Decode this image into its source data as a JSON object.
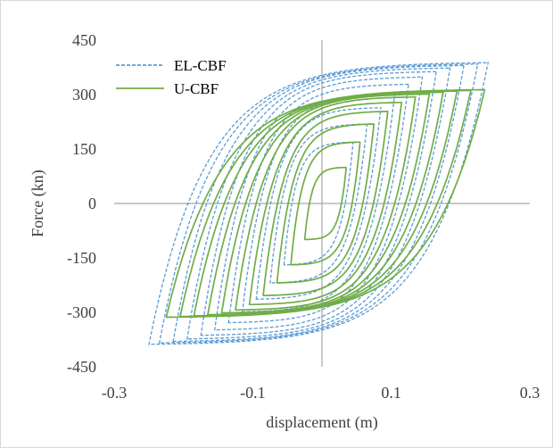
{
  "chart_data": {
    "type": "line",
    "xlabel": "displacement (m)",
    "ylabel": "Force (kn)",
    "xlim": [
      -0.3,
      0.3
    ],
    "ylim": [
      -450,
      450
    ],
    "x_ticks": [
      -0.3,
      -0.1,
      0.1,
      0.3
    ],
    "x_tick_labels": [
      "-0.3",
      "-0.1",
      "0.1",
      "0.3"
    ],
    "y_ticks": [
      450,
      300,
      150,
      0,
      -150,
      -300,
      -450
    ],
    "y_tick_labels": [
      "450",
      "300",
      "150",
      "0",
      "-150",
      "-300",
      "-450"
    ],
    "grid": false,
    "legend_position": "top-left",
    "series": [
      {
        "name": "EL-CBF",
        "style": "dashed",
        "color": "#5b9bd5",
        "cycles": [
          {
            "amp": 0.05,
            "force": 170
          },
          {
            "amp": 0.07,
            "force": 220
          },
          {
            "amp": 0.09,
            "force": 265
          },
          {
            "amp": 0.11,
            "force": 300
          },
          {
            "amp": 0.13,
            "force": 330
          },
          {
            "amp": 0.15,
            "force": 350
          },
          {
            "amp": 0.17,
            "force": 365
          },
          {
            "amp": 0.19,
            "force": 375
          },
          {
            "amp": 0.21,
            "force": 382
          },
          {
            "amp": 0.23,
            "force": 386
          },
          {
            "amp": 0.245,
            "force": 390
          }
        ],
        "x_peak_min": -0.25,
        "x_peak_max": 0.24,
        "force_peak_min": -385,
        "force_peak_max": 390
      },
      {
        "name": "U-CBF",
        "style": "solid",
        "color": "#70ad47",
        "cycles": [
          {
            "amp": 0.03,
            "force": 100
          },
          {
            "amp": 0.05,
            "force": 170
          },
          {
            "amp": 0.07,
            "force": 220
          },
          {
            "amp": 0.09,
            "force": 255
          },
          {
            "amp": 0.11,
            "force": 280
          },
          {
            "amp": 0.13,
            "force": 295
          },
          {
            "amp": 0.15,
            "force": 303
          },
          {
            "amp": 0.17,
            "force": 308
          },
          {
            "amp": 0.19,
            "force": 311
          },
          {
            "amp": 0.21,
            "force": 313
          },
          {
            "amp": 0.23,
            "force": 315
          }
        ],
        "x_peak_min": -0.22,
        "x_peak_max": 0.24,
        "force_peak_min": -315,
        "force_peak_max": 315
      }
    ]
  }
}
